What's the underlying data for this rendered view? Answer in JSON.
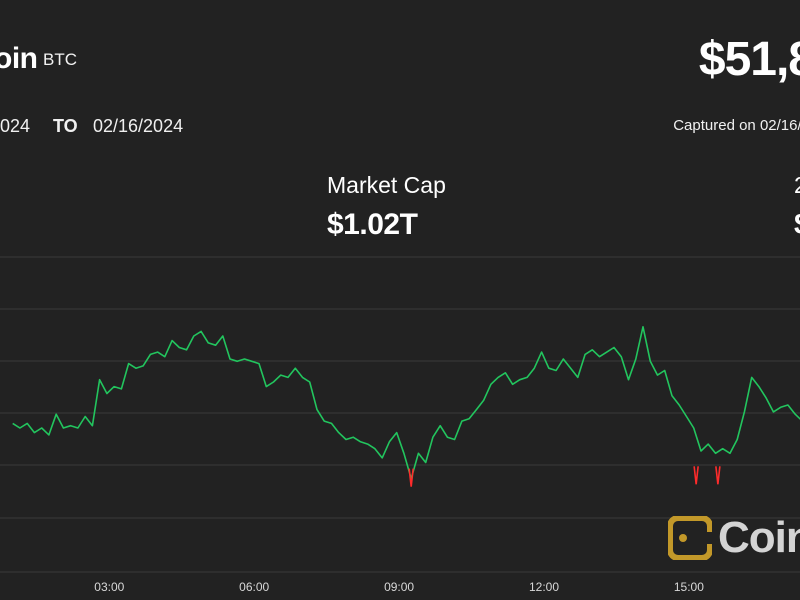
{
  "header": {
    "coin_name": "oin",
    "coin_symbol": "BTC",
    "price": "$51,8",
    "range_from": "2024",
    "range_to_label": "TO",
    "range_to": "02/16/2024",
    "captured": "Captured on 02/16/2"
  },
  "stats": {
    "market_cap_label": "Market Cap",
    "market_cap_value": "$1.02T",
    "second_label": "2",
    "second_value": "$"
  },
  "watermark": {
    "text": "Coin",
    "icon": "coindesk-logo-icon"
  },
  "colors": {
    "background": "#222222",
    "line_up": "#22c55e",
    "line_down": "#ff2b2b",
    "grid": "#3a3a3a"
  },
  "chart_data": {
    "type": "line",
    "x_ticks": [
      "03:00",
      "06:00",
      "09:00",
      "12:00",
      "15:00"
    ],
    "x_tick_hours": [
      3,
      6,
      9,
      12,
      15
    ],
    "x_range_hours": [
      1.0,
      18.2
    ],
    "y_range": [
      0,
      1
    ],
    "grid": true,
    "series": [
      {
        "points": [
          [
            1.0,
            0.42
          ],
          [
            1.15,
            0.4
          ],
          [
            1.3,
            0.42
          ],
          [
            1.45,
            0.38
          ],
          [
            1.6,
            0.4
          ],
          [
            1.75,
            0.37
          ],
          [
            1.9,
            0.46
          ],
          [
            2.05,
            0.4
          ],
          [
            2.2,
            0.41
          ],
          [
            2.35,
            0.4
          ],
          [
            2.5,
            0.45
          ],
          [
            2.65,
            0.41
          ],
          [
            2.8,
            0.61
          ],
          [
            2.95,
            0.55
          ],
          [
            3.1,
            0.58
          ],
          [
            3.25,
            0.57
          ],
          [
            3.4,
            0.68
          ],
          [
            3.55,
            0.66
          ],
          [
            3.7,
            0.67
          ],
          [
            3.85,
            0.72
          ],
          [
            4.0,
            0.73
          ],
          [
            4.15,
            0.71
          ],
          [
            4.3,
            0.78
          ],
          [
            4.45,
            0.75
          ],
          [
            4.6,
            0.74
          ],
          [
            4.75,
            0.8
          ],
          [
            4.9,
            0.82
          ],
          [
            5.05,
            0.77
          ],
          [
            5.2,
            0.76
          ],
          [
            5.35,
            0.8
          ],
          [
            5.5,
            0.7
          ],
          [
            5.65,
            0.69
          ],
          [
            5.8,
            0.7
          ],
          [
            5.95,
            0.69
          ],
          [
            6.1,
            0.68
          ],
          [
            6.25,
            0.58
          ],
          [
            6.4,
            0.6
          ],
          [
            6.55,
            0.63
          ],
          [
            6.7,
            0.62
          ],
          [
            6.85,
            0.66
          ],
          [
            7.0,
            0.62
          ],
          [
            7.15,
            0.6
          ],
          [
            7.3,
            0.48
          ],
          [
            7.45,
            0.43
          ],
          [
            7.6,
            0.42
          ],
          [
            7.75,
            0.38
          ],
          [
            7.9,
            0.35
          ],
          [
            8.05,
            0.36
          ],
          [
            8.2,
            0.34
          ],
          [
            8.35,
            0.33
          ],
          [
            8.5,
            0.31
          ],
          [
            8.65,
            0.27
          ],
          [
            8.8,
            0.34
          ],
          [
            8.95,
            0.38
          ],
          [
            9.1,
            0.29
          ],
          [
            9.25,
            0.18
          ],
          [
            9.4,
            0.29
          ],
          [
            9.55,
            0.25
          ],
          [
            9.7,
            0.36
          ],
          [
            9.85,
            0.41
          ],
          [
            10.0,
            0.36
          ],
          [
            10.15,
            0.35
          ],
          [
            10.3,
            0.43
          ],
          [
            10.45,
            0.44
          ],
          [
            10.6,
            0.48
          ],
          [
            10.75,
            0.52
          ],
          [
            10.9,
            0.59
          ],
          [
            11.05,
            0.62
          ],
          [
            11.2,
            0.64
          ],
          [
            11.35,
            0.59
          ],
          [
            11.5,
            0.61
          ],
          [
            11.65,
            0.62
          ],
          [
            11.8,
            0.66
          ],
          [
            11.95,
            0.73
          ],
          [
            12.1,
            0.66
          ],
          [
            12.25,
            0.65
          ],
          [
            12.4,
            0.7
          ],
          [
            12.55,
            0.66
          ],
          [
            12.7,
            0.62
          ],
          [
            12.85,
            0.72
          ],
          [
            13.0,
            0.74
          ],
          [
            13.15,
            0.71
          ],
          [
            13.3,
            0.73
          ],
          [
            13.45,
            0.75
          ],
          [
            13.6,
            0.71
          ],
          [
            13.75,
            0.61
          ],
          [
            13.9,
            0.7
          ],
          [
            14.05,
            0.84
          ],
          [
            14.2,
            0.69
          ],
          [
            14.35,
            0.63
          ],
          [
            14.5,
            0.65
          ],
          [
            14.65,
            0.54
          ],
          [
            14.8,
            0.5
          ],
          [
            14.95,
            0.45
          ],
          [
            15.1,
            0.4
          ],
          [
            15.25,
            0.3
          ],
          [
            15.4,
            0.33
          ],
          [
            15.55,
            0.29
          ],
          [
            15.7,
            0.31
          ],
          [
            15.85,
            0.29
          ],
          [
            16.0,
            0.35
          ],
          [
            16.15,
            0.47
          ],
          [
            16.3,
            0.62
          ],
          [
            16.45,
            0.58
          ],
          [
            16.6,
            0.53
          ],
          [
            16.75,
            0.47
          ],
          [
            16.9,
            0.49
          ],
          [
            17.05,
            0.5
          ],
          [
            17.2,
            0.46
          ],
          [
            17.35,
            0.43
          ],
          [
            17.5,
            0.45
          ],
          [
            17.65,
            0.44
          ],
          [
            17.8,
            0.4
          ],
          [
            17.95,
            0.4
          ],
          [
            18.1,
            0.42
          ],
          [
            18.2,
            0.43
          ]
        ]
      }
    ],
    "down_spikes": [
      {
        "x": 9.25,
        "y": 0.18
      },
      {
        "x": 15.15,
        "y": 0.19
      },
      {
        "x": 15.6,
        "y": 0.19
      }
    ]
  }
}
